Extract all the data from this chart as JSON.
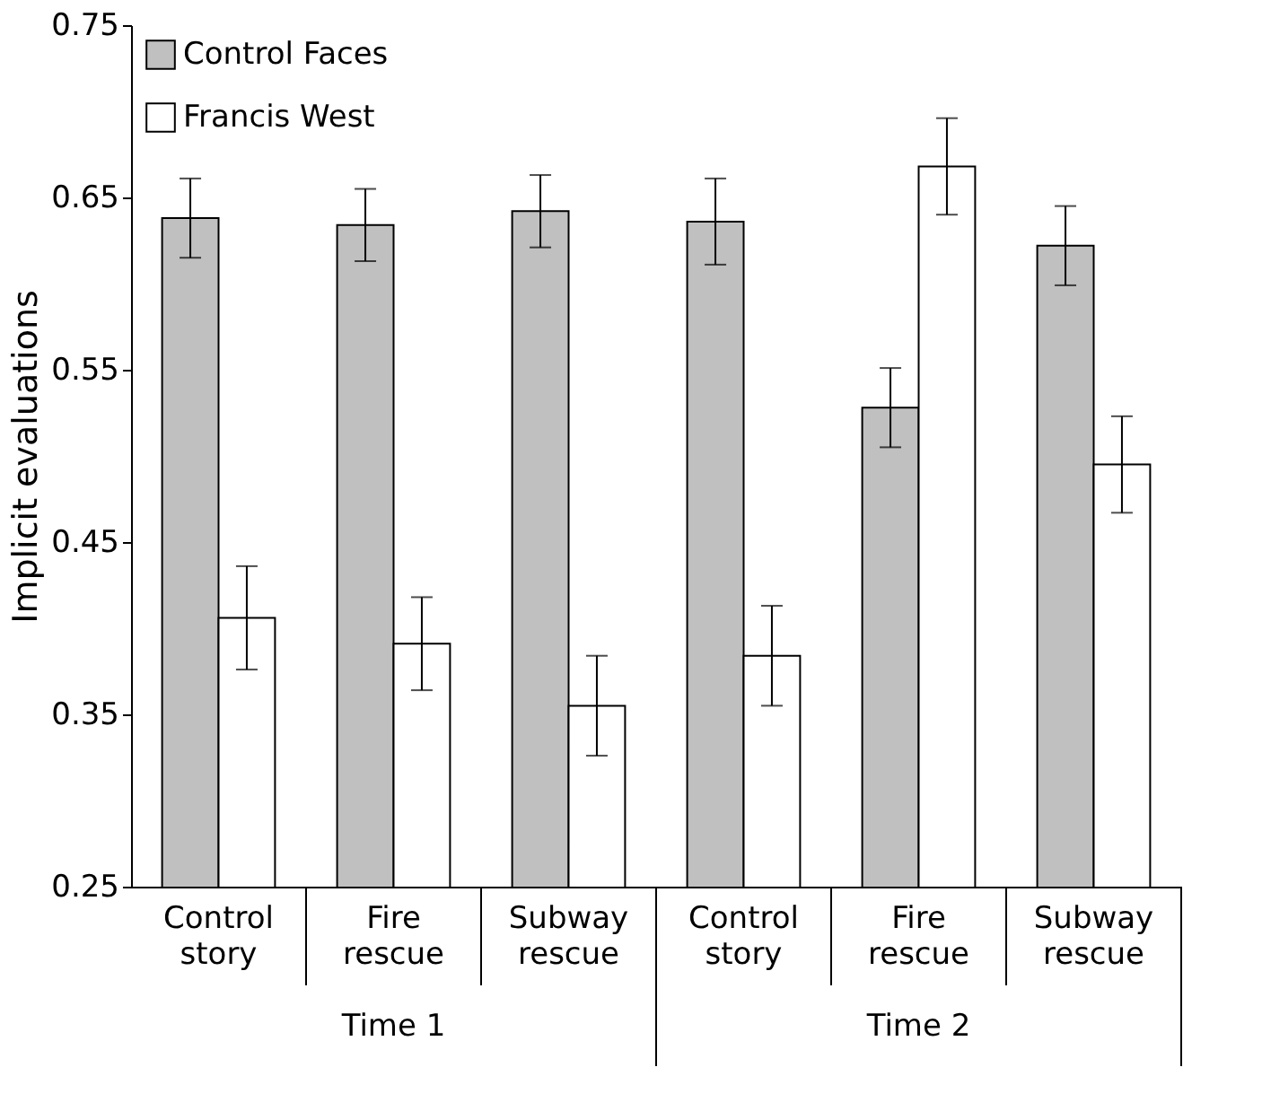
{
  "chart_data": {
    "type": "bar",
    "ylabel": "Implicit evaluations",
    "categories": [
      "Control story",
      "Fire rescue",
      "Subway rescue",
      "Control story",
      "Fire rescue",
      "Subway rescue"
    ],
    "series": [
      {
        "name": "Control Faces",
        "color": "#c0c0c0",
        "values": [
          0.638,
          0.634,
          0.642,
          0.636,
          0.528,
          0.622
        ],
        "errors": [
          0.023,
          0.021,
          0.021,
          0.025,
          0.023,
          0.023
        ]
      },
      {
        "name": "Francis West",
        "color": "#ffffff",
        "values": [
          0.406,
          0.391,
          0.355,
          0.384,
          0.668,
          0.495
        ],
        "errors": [
          0.03,
          0.027,
          0.029,
          0.029,
          0.028,
          0.028
        ]
      }
    ],
    "ylim": [
      0.25,
      0.75
    ],
    "yticks": [
      0.25,
      0.35,
      0.45,
      0.55,
      0.65,
      0.75
    ],
    "annotations": [
      "Time 1",
      "Time 2"
    ],
    "legend": "top left",
    "grid": false
  }
}
